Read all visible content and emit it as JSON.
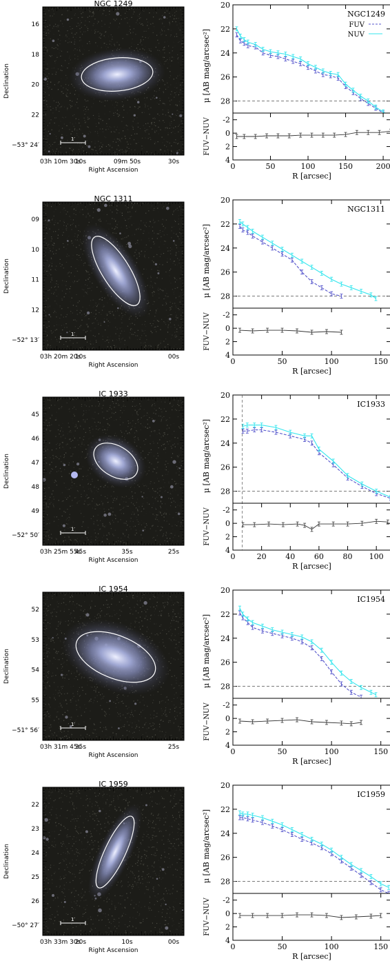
{
  "colors": {
    "fuv": "#5555cc",
    "nuv": "#33e6ee",
    "diff": "#333333",
    "ref_line": "#666666",
    "aperture": "#ffffff"
  },
  "chart_data": [
    {
      "name": "NGC 1249",
      "label": "NGC1249",
      "type": "line",
      "image": {
        "title": "NGC 1249",
        "dec_ticks": [
          "16",
          "18",
          "20",
          "22",
          "−53° 24′"
        ],
        "ra_ticks": [
          "03h 10m 30s",
          "10s",
          "09m 50s",
          "30s"
        ],
        "xlabel": "Right Ascension",
        "ylabel": "Declination",
        "scalebar": "1′"
      },
      "profile": {
        "ylabel": "μ [AB mag/arcsec²]",
        "xlabel": "R [arcsec]",
        "xlim": [
          0,
          210
        ],
        "ylim": [
          20,
          29
        ],
        "xticks": [
          0,
          50,
          100,
          150,
          200
        ],
        "yticks": [
          20,
          22,
          24,
          26,
          28
        ],
        "ref_line": 28,
        "legend": [
          "FUV",
          "NUV"
        ],
        "series": [
          {
            "name": "FUV",
            "x": [
              5,
              10,
              15,
              20,
              30,
              40,
              50,
              60,
              70,
              80,
              90,
              100,
              110,
              120,
              130,
              140,
              150,
              160,
              170,
              180,
              190,
              200,
              210
            ],
            "y": [
              22.5,
              23.0,
              23.2,
              23.4,
              23.5,
              24.0,
              24.2,
              24.3,
              24.5,
              24.7,
              24.9,
              25.2,
              25.5,
              25.8,
              25.9,
              26.1,
              26.8,
              27.3,
              27.8,
              28.2,
              28.6,
              29.0,
              29.3
            ]
          },
          {
            "name": "NUV",
            "x": [
              5,
              10,
              15,
              20,
              30,
              40,
              50,
              60,
              70,
              80,
              90,
              100,
              110,
              120,
              130,
              140,
              150,
              160,
              170,
              180,
              190,
              200,
              210
            ],
            "y": [
              22.0,
              22.6,
              22.9,
              23.1,
              23.3,
              23.7,
              23.9,
              24.0,
              24.1,
              24.3,
              24.5,
              24.9,
              25.2,
              25.5,
              25.7,
              25.8,
              26.6,
              27.1,
              27.6,
              28.0,
              28.5,
              28.9,
              29.3
            ]
          }
        ]
      },
      "color_profile": {
        "ylabel": "FUV−NUV",
        "ylim": [
          4,
          -3
        ],
        "yticks": [
          -2,
          0,
          2,
          4
        ],
        "x": [
          5,
          15,
          30,
          45,
          60,
          75,
          90,
          105,
          120,
          135,
          150,
          165,
          180,
          195,
          210
        ],
        "y": [
          0.5,
          0.5,
          0.5,
          0.4,
          0.4,
          0.4,
          0.3,
          0.3,
          0.3,
          0.3,
          0.2,
          -0.1,
          -0.1,
          -0.1,
          -0.3
        ]
      }
    },
    {
      "name": "NGC 1311",
      "label": "NGC1311",
      "type": "line",
      "image": {
        "title": "NGC 1311",
        "dec_ticks": [
          "09",
          "10",
          "11",
          "12",
          "−52° 13′"
        ],
        "ra_ticks": [
          "03h 20m 20s",
          "10s",
          "00s"
        ],
        "xlabel": "Right Ascension",
        "ylabel": "Declination",
        "scalebar": "1′"
      },
      "profile": {
        "ylabel": "μ [AB mag/arcsec²]",
        "xlabel": "R [arcsec]",
        "xlim": [
          0,
          160
        ],
        "ylim": [
          20,
          29
        ],
        "xticks": [
          0,
          50,
          100,
          150
        ],
        "yticks": [
          20,
          22,
          24,
          26,
          28
        ],
        "ref_line": 28,
        "series": [
          {
            "name": "FUV",
            "x": [
              7,
              10,
              15,
              20,
              30,
              40,
              50,
              60,
              70,
              80,
              90,
              100,
              110
            ],
            "y": [
              22.2,
              22.5,
              22.7,
              23.0,
              23.5,
              24.0,
              24.5,
              25.0,
              26.0,
              26.8,
              27.3,
              27.8,
              28.0
            ]
          },
          {
            "name": "NUV",
            "x": [
              7,
              10,
              15,
              20,
              30,
              40,
              50,
              60,
              70,
              80,
              90,
              100,
              110,
              120,
              130,
              140,
              145
            ],
            "y": [
              21.8,
              22.0,
              22.3,
              22.6,
              23.1,
              23.6,
              24.1,
              24.6,
              25.1,
              25.6,
              26.1,
              26.6,
              27.0,
              27.3,
              27.6,
              27.9,
              28.2
            ]
          }
        ]
      },
      "color_profile": {
        "ylabel": "FUV−NUV",
        "ylim": [
          4,
          -3
        ],
        "yticks": [
          -2,
          0,
          2,
          4
        ],
        "x": [
          7,
          20,
          35,
          50,
          65,
          80,
          95,
          110
        ],
        "y": [
          0.3,
          0.4,
          0.3,
          0.3,
          0.4,
          0.6,
          0.5,
          0.6
        ]
      }
    },
    {
      "name": "IC 1933",
      "label": "IC1933",
      "type": "line",
      "image": {
        "title": "IC 1933",
        "dec_ticks": [
          "45",
          "46",
          "47",
          "48",
          "49",
          "−52° 50′"
        ],
        "ra_ticks": [
          "03h 25m 55s",
          "45s",
          "35s",
          "25s"
        ],
        "xlabel": "Right Ascension",
        "ylabel": "Declination",
        "scalebar": "1′"
      },
      "profile": {
        "ylabel": "μ [AB mag/arcsec²]",
        "xlabel": "R [arcsec]",
        "xlim": [
          0,
          110
        ],
        "ylim": [
          20,
          29
        ],
        "xticks": [
          0,
          20,
          40,
          60,
          80,
          100
        ],
        "yticks": [
          20,
          22,
          24,
          26,
          28
        ],
        "ref_line": 28,
        "series": [
          {
            "name": "FUV",
            "x": [
              7,
              10,
              15,
              20,
              30,
              40,
              50,
              55,
              60,
              70,
              80,
              90,
              100,
              110
            ],
            "y": [
              23.0,
              23.0,
              22.9,
              22.9,
              23.1,
              23.4,
              23.7,
              24.0,
              24.8,
              25.8,
              26.9,
              27.6,
              28.2,
              28.6
            ]
          },
          {
            "name": "NUV",
            "x": [
              7,
              10,
              15,
              20,
              30,
              40,
              50,
              55,
              60,
              70,
              80,
              90,
              100,
              110
            ],
            "y": [
              22.6,
              22.5,
              22.5,
              22.5,
              22.7,
              23.1,
              23.4,
              23.4,
              24.5,
              25.5,
              26.7,
              27.4,
              28.0,
              28.5
            ]
          }
        ]
      },
      "color_profile": {
        "ylabel": "FUV−NUV",
        "ylim": [
          4,
          -3
        ],
        "yticks": [
          -2,
          0,
          2,
          4
        ],
        "x": [
          7,
          15,
          25,
          35,
          45,
          50,
          55,
          60,
          70,
          80,
          90,
          100,
          108
        ],
        "y": [
          0.2,
          0.2,
          0.1,
          0.2,
          0.1,
          0.3,
          0.9,
          0.1,
          0.1,
          0.1,
          0.0,
          -0.3,
          -0.2
        ]
      }
    },
    {
      "name": "IC 1954",
      "label": "IC1954",
      "type": "line",
      "image": {
        "title": "IC 1954",
        "dec_ticks": [
          "52",
          "53",
          "54",
          "55",
          "−51° 56′"
        ],
        "ra_ticks": [
          "03h 31m 45s",
          "35s",
          "25s"
        ],
        "xlabel": "Right Ascension",
        "ylabel": "Declination",
        "scalebar": "1′"
      },
      "profile": {
        "ylabel": "μ [AB mag/arcsec²]",
        "xlabel": "R [arcsec]",
        "xlim": [
          0,
          160
        ],
        "ylim": [
          20,
          29
        ],
        "xticks": [
          0,
          50,
          100,
          150
        ],
        "yticks": [
          20,
          22,
          24,
          26,
          28
        ],
        "ref_line": 28,
        "series": [
          {
            "name": "FUV",
            "x": [
              7,
              10,
              15,
              20,
              30,
              40,
              50,
              60,
              70,
              80,
              90,
              100,
              110,
              120,
              130
            ],
            "y": [
              21.9,
              22.3,
              22.7,
              23.1,
              23.4,
              23.6,
              23.8,
              24.0,
              24.3,
              24.8,
              25.7,
              26.8,
              27.8,
              28.5,
              28.9
            ]
          },
          {
            "name": "NUV",
            "x": [
              7,
              10,
              15,
              20,
              30,
              40,
              50,
              60,
              70,
              80,
              90,
              100,
              110,
              120,
              130,
              140,
              145
            ],
            "y": [
              21.5,
              22.0,
              22.4,
              22.7,
              23.0,
              23.3,
              23.5,
              23.7,
              23.9,
              24.3,
              25.0,
              26.0,
              26.9,
              27.6,
              28.1,
              28.5,
              28.7
            ]
          }
        ]
      },
      "color_profile": {
        "ylabel": "FUV−NUV",
        "ylim": [
          4,
          -3
        ],
        "yticks": [
          -2,
          0,
          2,
          4
        ],
        "x": [
          7,
          20,
          35,
          50,
          65,
          80,
          95,
          110,
          120,
          130
        ],
        "y": [
          0.4,
          0.5,
          0.4,
          0.3,
          0.2,
          0.5,
          0.6,
          0.7,
          0.8,
          0.6
        ]
      }
    },
    {
      "name": "IC 1959",
      "label": "IC1959",
      "type": "line",
      "image": {
        "title": "IC 1959",
        "dec_ticks": [
          "22",
          "23",
          "24",
          "25",
          "26",
          "−50° 27′"
        ],
        "ra_ticks": [
          "03h 33m 30s",
          "20s",
          "10s",
          "00s"
        ],
        "xlabel": "Right Ascension",
        "ylabel": "Declination",
        "scalebar": "1′"
      },
      "profile": {
        "ylabel": "μ [AB mag/arcsec²]",
        "xlabel": "R [arcsec]",
        "xlim": [
          0,
          160
        ],
        "ylim": [
          20,
          29
        ],
        "xticks": [
          0,
          50,
          100,
          150
        ],
        "yticks": [
          20,
          22,
          24,
          26,
          28
        ],
        "ref_line": 28,
        "series": [
          {
            "name": "FUV",
            "x": [
              7,
              10,
              15,
              20,
              30,
              40,
              50,
              60,
              70,
              80,
              90,
              100,
              110,
              120,
              130,
              140,
              150,
              158
            ],
            "y": [
              22.7,
              22.7,
              22.8,
              22.9,
              23.1,
              23.4,
              23.7,
              24.1,
              24.5,
              24.8,
              25.2,
              25.7,
              26.3,
              26.9,
              27.5,
              28.1,
              28.7,
              29.0
            ]
          },
          {
            "name": "NUV",
            "x": [
              7,
              10,
              15,
              20,
              30,
              40,
              50,
              60,
              70,
              80,
              90,
              100,
              110,
              120,
              130,
              140,
              150,
              158
            ],
            "y": [
              22.3,
              22.4,
              22.4,
              22.5,
              22.7,
              23.0,
              23.3,
              23.7,
              24.1,
              24.5,
              24.9,
              25.4,
              26.0,
              26.6,
              27.1,
              27.6,
              28.2,
              28.5
            ]
          }
        ]
      },
      "color_profile": {
        "ylabel": "FUV−NUV",
        "ylim": [
          4,
          -3
        ],
        "yticks": [
          -2,
          0,
          2,
          4
        ],
        "x": [
          7,
          20,
          35,
          50,
          65,
          80,
          95,
          110,
          125,
          140,
          150
        ],
        "y": [
          0.3,
          0.3,
          0.3,
          0.3,
          0.2,
          0.2,
          0.3,
          0.6,
          0.5,
          0.4,
          0.3
        ]
      }
    }
  ]
}
